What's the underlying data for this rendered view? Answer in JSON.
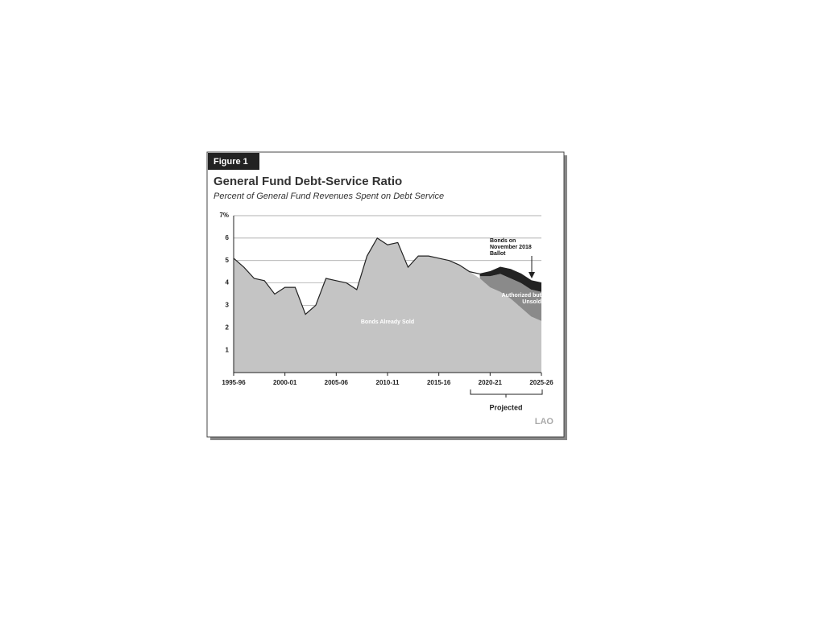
{
  "figure_label": "Figure 1",
  "chart_data": {
    "type": "stacked-area",
    "title": "General Fund Debt-Service Ratio",
    "subtitle": "Percent of General Fund Revenues Spent on Debt Service",
    "categories": [
      "1995-96",
      null,
      null,
      null,
      null,
      "2000-01",
      null,
      null,
      null,
      null,
      "2005-06",
      null,
      null,
      null,
      null,
      "2010-11",
      null,
      null,
      null,
      null,
      "2015-16",
      null,
      null,
      null,
      null,
      "2020-21",
      null,
      null,
      null,
      null,
      "2025-26"
    ],
    "series": [
      {
        "name": "Bonds Already Sold",
        "color": "#c4c4c4",
        "values": [
          5.1,
          4.7,
          4.2,
          4.1,
          3.5,
          3.8,
          3.8,
          2.6,
          3.0,
          4.2,
          4.1,
          4.0,
          3.7,
          5.2,
          6.0,
          5.7,
          5.8,
          4.7,
          5.2,
          5.2,
          5.1,
          5.0,
          4.8,
          4.5,
          4.2,
          3.8,
          3.6,
          3.3,
          2.9,
          2.5,
          2.3
        ]
      },
      {
        "name": "Authorized but Unsold",
        "color": "#8a8a8a",
        "values": [
          null,
          null,
          null,
          null,
          null,
          null,
          null,
          null,
          null,
          null,
          null,
          null,
          null,
          null,
          null,
          null,
          null,
          null,
          null,
          null,
          null,
          null,
          null,
          null,
          0.1,
          0.5,
          0.8,
          0.9,
          1.1,
          1.2,
          1.3
        ]
      },
      {
        "name": "Bonds on November 2018 Ballot",
        "color": "#222222",
        "values": [
          null,
          null,
          null,
          null,
          null,
          null,
          null,
          null,
          null,
          null,
          null,
          null,
          null,
          null,
          null,
          null,
          null,
          null,
          null,
          null,
          null,
          null,
          null,
          null,
          0.1,
          0.2,
          0.3,
          0.4,
          0.4,
          0.4,
          0.4
        ]
      }
    ],
    "ylim": [
      0,
      7
    ],
    "yticks": [
      1,
      2,
      3,
      4,
      5,
      6,
      {
        "value": 7,
        "label": "7%"
      }
    ],
    "grid": true,
    "projected_label": "Projected",
    "source": "LAO"
  }
}
